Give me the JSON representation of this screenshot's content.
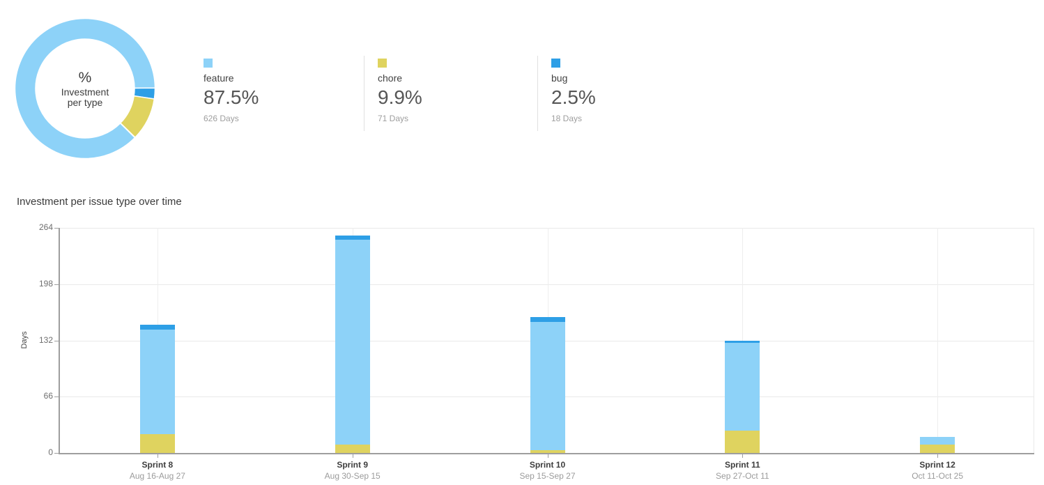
{
  "donut_section": {
    "center": {
      "symbol": "%",
      "line1": "Investment",
      "line2": "per type"
    },
    "legend": [
      {
        "name": "feature",
        "percent": "87.5%",
        "days": "626 Days",
        "color": "#8DD2F8"
      },
      {
        "name": "chore",
        "percent": "9.9%",
        "days": "71 Days",
        "color": "#DFD35F"
      },
      {
        "name": "bug",
        "percent": "2.5%",
        "days": "18 Days",
        "color": "#2E9FE6"
      }
    ]
  },
  "bar_section": {
    "title": "Investment per issue type over time"
  },
  "chart_data": [
    {
      "type": "pie",
      "donut": true,
      "title": "% Investment per type",
      "labels": [
        "feature",
        "chore",
        "bug"
      ],
      "values": [
        87.5,
        9.9,
        2.5
      ],
      "unit": "percent of days",
      "values_days": [
        626,
        71,
        18
      ],
      "colors": [
        "#8DD2F8",
        "#DFD35F",
        "#2E9FE6"
      ],
      "segment_draw_order": [
        "feature",
        "bug",
        "chore"
      ],
      "start_angle_deg_clockwise_from_top": 134.6,
      "legend_position": "right"
    },
    {
      "type": "bar",
      "stacked": true,
      "title": "Investment per issue type over time",
      "xlabel": "",
      "ylabel": "Days",
      "ylim": [
        0,
        264
      ],
      "yticks": [
        0,
        66,
        132,
        198,
        264
      ],
      "grid": true,
      "legend_position": "none",
      "categories": [
        "Sprint 8",
        "Sprint 9",
        "Sprint 10",
        "Sprint 11",
        "Sprint 12"
      ],
      "category_dates": [
        "Aug 16-Aug 27",
        "Aug 30-Sep 15",
        "Sep 15-Sep 27",
        "Sep 27-Oct 11",
        "Oct 11-Oct 25"
      ],
      "series": [
        {
          "name": "chore",
          "color": "#DFD35F",
          "values": [
            22,
            10,
            3,
            26,
            10
          ]
        },
        {
          "name": "feature",
          "color": "#8DD2F8",
          "values": [
            123,
            240,
            151,
            103,
            9
          ]
        },
        {
          "name": "bug",
          "color": "#2E9FE6",
          "values": [
            5,
            5,
            5,
            3,
            0
          ]
        }
      ],
      "stack_order_bottom_to_top": [
        "chore",
        "feature",
        "bug"
      ],
      "totals_per_category": [
        150,
        255,
        159,
        132,
        19
      ]
    }
  ]
}
